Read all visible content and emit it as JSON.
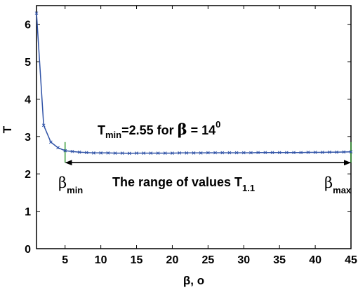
{
  "chart_data": {
    "type": "line",
    "xlabel": "β, o",
    "ylabel": "T",
    "xlim": [
      1,
      45
    ],
    "ylim": [
      0,
      6.5
    ],
    "x_ticks": [
      5,
      10,
      15,
      20,
      25,
      30,
      35,
      40,
      45
    ],
    "y_ticks": [
      0,
      1,
      2,
      3,
      4,
      5,
      6
    ],
    "grid": false,
    "series": [
      {
        "color": "#2f52a6",
        "marker": "x",
        "x": [
          1,
          2,
          3,
          4,
          5,
          6,
          7,
          8,
          9,
          10,
          11,
          12,
          13,
          14,
          15,
          16,
          17,
          18,
          19,
          20,
          21,
          22,
          23,
          24,
          25,
          26,
          27,
          28,
          29,
          30,
          31,
          32,
          33,
          34,
          35,
          36,
          37,
          38,
          39,
          40,
          41,
          42,
          43,
          44,
          45
        ],
        "y": [
          6.3,
          3.3,
          2.85,
          2.7,
          2.62,
          2.6,
          2.58,
          2.57,
          2.56,
          2.56,
          2.56,
          2.555,
          2.555,
          2.55,
          2.555,
          2.555,
          2.555,
          2.555,
          2.555,
          2.555,
          2.56,
          2.56,
          2.56,
          2.56,
          2.565,
          2.565,
          2.565,
          2.565,
          2.565,
          2.565,
          2.565,
          2.57,
          2.57,
          2.57,
          2.57,
          2.57,
          2.57,
          2.57,
          2.575,
          2.575,
          2.575,
          2.58,
          2.58,
          2.585,
          2.59
        ]
      }
    ],
    "annotations": {
      "tmin": {
        "pre": "T",
        "sub": "min",
        "mid": "=2.55 for ",
        "beta": "β",
        "post": " = 14",
        "sup": "0"
      },
      "range": {
        "text": "The range of values T",
        "sub": "1.1"
      },
      "beta_min": {
        "symbol": "β",
        "sub": "min"
      },
      "beta_max": {
        "symbol": "β",
        "sub": "max"
      },
      "range_arrow": {
        "from": 5,
        "to": 45,
        "y": 2.3
      },
      "vertical_markers": [
        5,
        45
      ],
      "marker_color": "#1a8c1a"
    }
  }
}
